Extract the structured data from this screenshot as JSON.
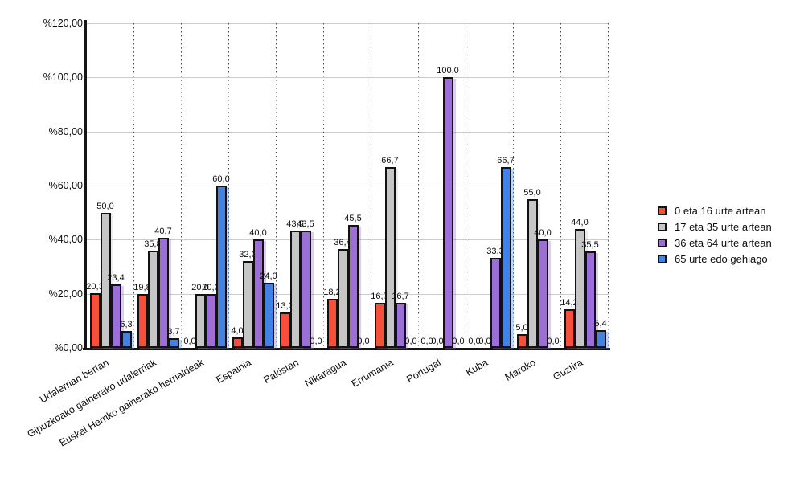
{
  "chart_data": {
    "type": "bar",
    "title": "",
    "xlabel": "",
    "ylabel": "",
    "ylim": [
      0,
      120
    ],
    "ytick_step": 20,
    "grid": true,
    "legend_position": "right",
    "ytick_values": [
      0,
      20,
      40,
      60,
      80,
      100,
      120
    ],
    "ytick_labels": [
      "%0,00",
      "%20,00",
      "%40,00",
      "%60,00",
      "%80,00",
      "%100,00",
      "%120,00"
    ],
    "categories": [
      "Udalerrian bertan",
      "Gipuzkoako gainerako udalerriak",
      "Euskal Herriko gainerako herrialdeak",
      "Espainia",
      "Pakistan",
      "Nikaragua",
      "Errumania",
      "Portugal",
      "Kuba",
      "Maroko",
      "Guztira"
    ],
    "series": [
      {
        "name": "0 eta 16 urte artean",
        "color": "#f4503c",
        "values": [
          20.3,
          19.8,
          0.0,
          4.0,
          13.0,
          18.2,
          16.7,
          0.0,
          0.0,
          5.0,
          14.2
        ],
        "value_labels": [
          "20,3",
          "19,8",
          "0,0",
          "4,0",
          "13,0",
          "18,2",
          "16,7",
          "0,0",
          "0,0",
          "5,0",
          "14,2"
        ]
      },
      {
        "name": "17 eta 35 urte artean",
        "color": "#c6c6c6",
        "values": [
          50.0,
          35.8,
          20.0,
          32.0,
          43.5,
          36.4,
          66.7,
          0.0,
          0.0,
          55.0,
          44.0
        ],
        "value_labels": [
          "50,0",
          "35,8",
          "20,0",
          "32,0",
          "43,5",
          "36,4",
          "66,7",
          "0,0",
          "0,0",
          "55,0",
          "44,0"
        ]
      },
      {
        "name": "36 eta 64 urte artean",
        "color": "#9b6fd6",
        "values": [
          23.4,
          40.7,
          20.0,
          40.0,
          43.5,
          45.5,
          16.7,
          100.0,
          33.3,
          40.0,
          35.5
        ],
        "value_labels": [
          "23,4",
          "40,7",
          "20,0",
          "40,0",
          "43,5",
          "45,5",
          "16,7",
          "100,0",
          "33,3",
          "40,0",
          "35,5"
        ]
      },
      {
        "name": "65 urte edo gehiago",
        "color": "#4282e2",
        "values": [
          6.3,
          3.7,
          60.0,
          24.0,
          0.0,
          0.0,
          0.0,
          0.0,
          66.7,
          0.0,
          6.4
        ],
        "value_labels": [
          "6,3",
          "3,7",
          "60,0",
          "24,0",
          "0,0",
          "0,0",
          "0,0",
          "0,0",
          "66,7",
          "0,0",
          "6,4"
        ]
      }
    ]
  },
  "colors": {
    "grid": "#cbcbcb",
    "axis": "#151515",
    "bar_border": "#121212",
    "series_red": "#f4503c",
    "series_gray": "#c6c6c6",
    "series_purple": "#9b6fd6",
    "series_blue": "#4282e2"
  }
}
